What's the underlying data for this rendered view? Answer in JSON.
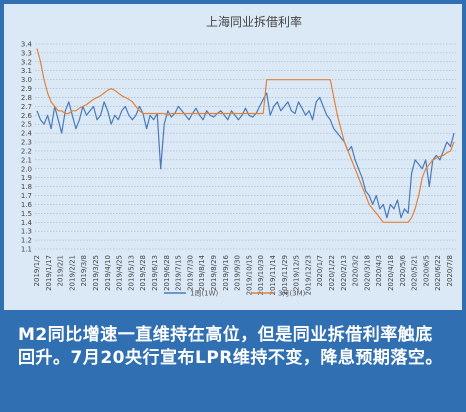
{
  "caption": "M2同比增速一直维持在高位，但是同业拆借利率触底回升。7月20央行宣布LPR维持不变，降息预期落空。",
  "chart_data": {
    "type": "line",
    "title": "上海同业拆借利率",
    "y_ticks": [
      1.1,
      1.2,
      1.3,
      1.4,
      1.5,
      1.6,
      1.7,
      1.8,
      1.9,
      2.0,
      2.1,
      2.2,
      2.3,
      2.4,
      2.5,
      2.6,
      2.7,
      2.8,
      2.9,
      3.0,
      3.1,
      3.2,
      3.3,
      3.4
    ],
    "ylim": [
      1.1,
      3.4
    ],
    "grid": true,
    "legend_position": "bottom",
    "x_tick_labels": [
      "2019/1/2",
      "2019/1/17",
      "2019/2/1",
      "2019/2/21",
      "2019/3/8",
      "2019/3/25",
      "2019/4/10",
      "2019/4/25",
      "2019/5/13",
      "2019/5/28",
      "2019/6/13",
      "2019/6/28",
      "2019/7/15",
      "2019/7/30",
      "2019/8/14",
      "2019/8/29",
      "2019/9/16",
      "2019/9/30",
      "2019/10/15",
      "2019/10/30",
      "2019/11/14",
      "2019/11/29",
      "2019/12/5",
      "2019/12/23",
      "2020/1/7",
      "2020/1/22",
      "2020/2/13",
      "2020/3/2",
      "2020/3/18",
      "2020/4/3",
      "2020/4/18",
      "2020/5/6",
      "2020/5/21",
      "2020/6/5",
      "2020/6/22",
      "2020/7/8"
    ],
    "series": [
      {
        "name": "1周(1W)",
        "color": "#4a7ab8",
        "values": [
          2.65,
          2.55,
          2.5,
          2.6,
          2.45,
          2.7,
          2.55,
          2.4,
          2.65,
          2.75,
          2.6,
          2.45,
          2.55,
          2.7,
          2.6,
          2.65,
          2.7,
          2.55,
          2.6,
          2.75,
          2.65,
          2.5,
          2.6,
          2.55,
          2.65,
          2.7,
          2.6,
          2.55,
          2.6,
          2.7,
          2.62,
          2.45,
          2.6,
          2.55,
          2.62,
          2.0,
          2.5,
          2.65,
          2.58,
          2.62,
          2.7,
          2.65,
          2.6,
          2.55,
          2.62,
          2.68,
          2.6,
          2.55,
          2.65,
          2.6,
          2.58,
          2.62,
          2.65,
          2.6,
          2.55,
          2.65,
          2.6,
          2.55,
          2.6,
          2.68,
          2.6,
          2.58,
          2.62,
          2.7,
          2.78,
          2.85,
          2.6,
          2.7,
          2.75,
          2.65,
          2.7,
          2.75,
          2.65,
          2.62,
          2.75,
          2.68,
          2.6,
          2.65,
          2.55,
          2.75,
          2.8,
          2.7,
          2.6,
          2.55,
          2.45,
          2.4,
          2.35,
          2.3,
          2.2,
          2.25,
          2.1,
          2.0,
          1.9,
          1.75,
          1.7,
          1.6,
          1.7,
          1.55,
          1.6,
          1.45,
          1.6,
          1.55,
          1.65,
          1.45,
          1.55,
          1.5,
          1.95,
          2.1,
          2.05,
          2.0,
          2.1,
          1.8,
          2.1,
          2.15,
          2.1,
          2.2,
          2.3,
          2.25,
          2.4
        ]
      },
      {
        "name": "3月(3M)",
        "color": "#e0823a",
        "values": [
          3.35,
          3.2,
          3.0,
          2.85,
          2.75,
          2.7,
          2.65,
          2.65,
          2.62,
          2.62,
          2.65,
          2.65,
          2.68,
          2.7,
          2.72,
          2.75,
          2.78,
          2.8,
          2.82,
          2.85,
          2.88,
          2.9,
          2.88,
          2.85,
          2.82,
          2.8,
          2.78,
          2.75,
          2.7,
          2.65,
          2.62,
          2.62,
          2.62,
          2.62,
          2.62,
          2.62,
          2.62,
          2.6,
          2.62,
          2.62,
          2.62,
          2.62,
          2.62,
          2.62,
          2.62,
          2.62,
          2.62,
          2.62,
          2.62,
          2.62,
          2.62,
          2.62,
          2.62,
          2.62,
          2.62,
          2.62,
          2.62,
          2.62,
          2.62,
          2.62,
          2.62,
          2.62,
          2.62,
          2.62,
          2.62,
          3.0,
          3.0,
          3.0,
          3.0,
          3.0,
          3.0,
          3.0,
          3.0,
          3.0,
          3.0,
          3.0,
          3.0,
          3.0,
          3.0,
          3.0,
          3.0,
          3.0,
          3.0,
          3.0,
          2.8,
          2.6,
          2.45,
          2.3,
          2.2,
          2.1,
          2.0,
          1.9,
          1.8,
          1.7,
          1.6,
          1.55,
          1.5,
          1.45,
          1.4,
          1.4,
          1.4,
          1.4,
          1.4,
          1.4,
          1.4,
          1.4,
          1.45,
          1.55,
          1.7,
          1.9,
          2.0,
          2.05,
          2.1,
          2.12,
          2.14,
          2.15,
          2.18,
          2.2,
          2.3
        ]
      }
    ]
  }
}
